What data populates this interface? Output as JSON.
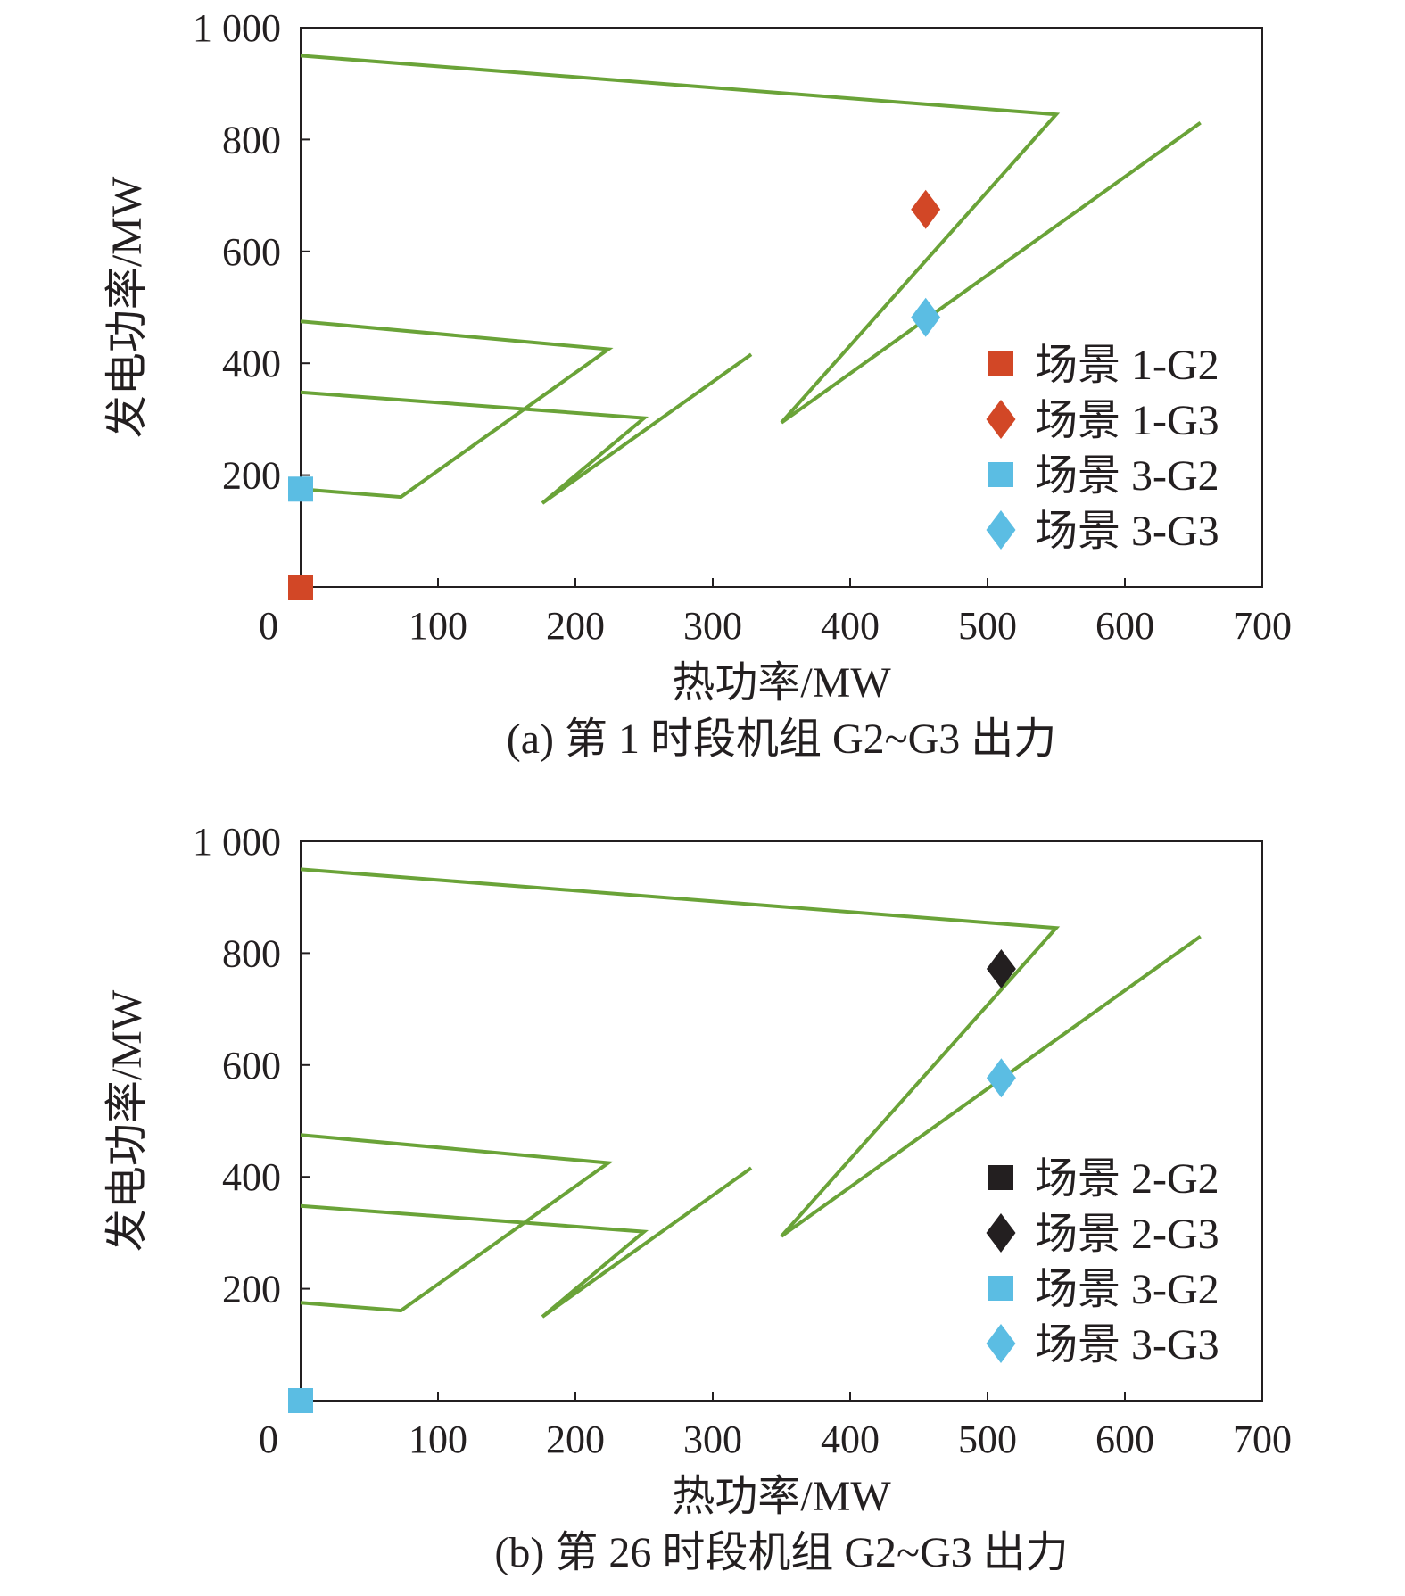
{
  "chart_data": [
    {
      "type": "scatter",
      "caption": "(a) 第 1 时段机组 G2~G3 出力",
      "xlabel": "热功率/MW",
      "ylabel": "发电功率/MW",
      "xlim": [
        0,
        700
      ],
      "ylim": [
        0,
        1000
      ],
      "xticks": [
        0,
        100,
        200,
        300,
        400,
        500,
        600,
        700
      ],
      "yticks": [
        200,
        400,
        600,
        800,
        1000
      ],
      "xtick_labels": [
        "0",
        "100",
        "200",
        "300",
        "400",
        "500",
        "600",
        "700"
      ],
      "ytick_labels": [
        "200",
        "400",
        "600",
        "800",
        "1 000"
      ],
      "grid": false,
      "legend_position": "bottom-right",
      "region_color": "#6aa338",
      "region_lines": [
        [
          [
            0,
            950
          ],
          [
            550,
            845
          ],
          [
            350,
            294
          ],
          [
            655,
            830
          ]
        ],
        [
          [
            0,
            475
          ],
          [
            224,
            425
          ],
          [
            73,
            161
          ],
          [
            0,
            175
          ]
        ],
        [
          [
            0,
            348
          ],
          [
            250,
            302
          ],
          [
            176,
            150
          ],
          [
            328,
            416
          ]
        ]
      ],
      "series": [
        {
          "name": "场景 1-G2",
          "marker": "square",
          "color": "#d24726",
          "points": [
            [
              0,
              0
            ]
          ]
        },
        {
          "name": "场景 1-G3",
          "marker": "diamond",
          "color": "#d24726",
          "points": [
            [
              455,
              675
            ]
          ]
        },
        {
          "name": "场景 3-G2",
          "marker": "square",
          "color": "#5bbde3",
          "points": [
            [
              0,
              175
            ]
          ]
        },
        {
          "name": "场景 3-G3",
          "marker": "diamond",
          "color": "#5bbde3",
          "points": [
            [
              455,
              482
            ]
          ]
        }
      ]
    },
    {
      "type": "scatter",
      "caption": "(b) 第 26 时段机组 G2~G3 出力",
      "xlabel": "热功率/MW",
      "ylabel": "发电功率/MW",
      "xlim": [
        0,
        700
      ],
      "ylim": [
        0,
        1000
      ],
      "xticks": [
        0,
        100,
        200,
        300,
        400,
        500,
        600,
        700
      ],
      "yticks": [
        200,
        400,
        600,
        800,
        1000
      ],
      "xtick_labels": [
        "0",
        "100",
        "200",
        "300",
        "400",
        "500",
        "600",
        "700"
      ],
      "ytick_labels": [
        "200",
        "400",
        "600",
        "800",
        "1 000"
      ],
      "grid": false,
      "legend_position": "bottom-right",
      "region_color": "#6aa338",
      "region_lines": [
        [
          [
            0,
            950
          ],
          [
            550,
            845
          ],
          [
            350,
            294
          ],
          [
            655,
            830
          ]
        ],
        [
          [
            0,
            475
          ],
          [
            224,
            425
          ],
          [
            73,
            161
          ],
          [
            0,
            175
          ]
        ],
        [
          [
            0,
            348
          ],
          [
            250,
            302
          ],
          [
            176,
            150
          ],
          [
            328,
            416
          ]
        ]
      ],
      "series": [
        {
          "name": "场景 2-G2",
          "marker": "square",
          "color": "#231f20",
          "points": []
        },
        {
          "name": "场景 2-G3",
          "marker": "diamond",
          "color": "#231f20",
          "points": [
            [
              510,
              772
            ]
          ]
        },
        {
          "name": "场景 3-G2",
          "marker": "square",
          "color": "#5bbde3",
          "points": [
            [
              0,
              0
            ]
          ]
        },
        {
          "name": "场景 3-G3",
          "marker": "diamond",
          "color": "#5bbde3",
          "points": [
            [
              510,
              577
            ]
          ]
        }
      ]
    }
  ]
}
